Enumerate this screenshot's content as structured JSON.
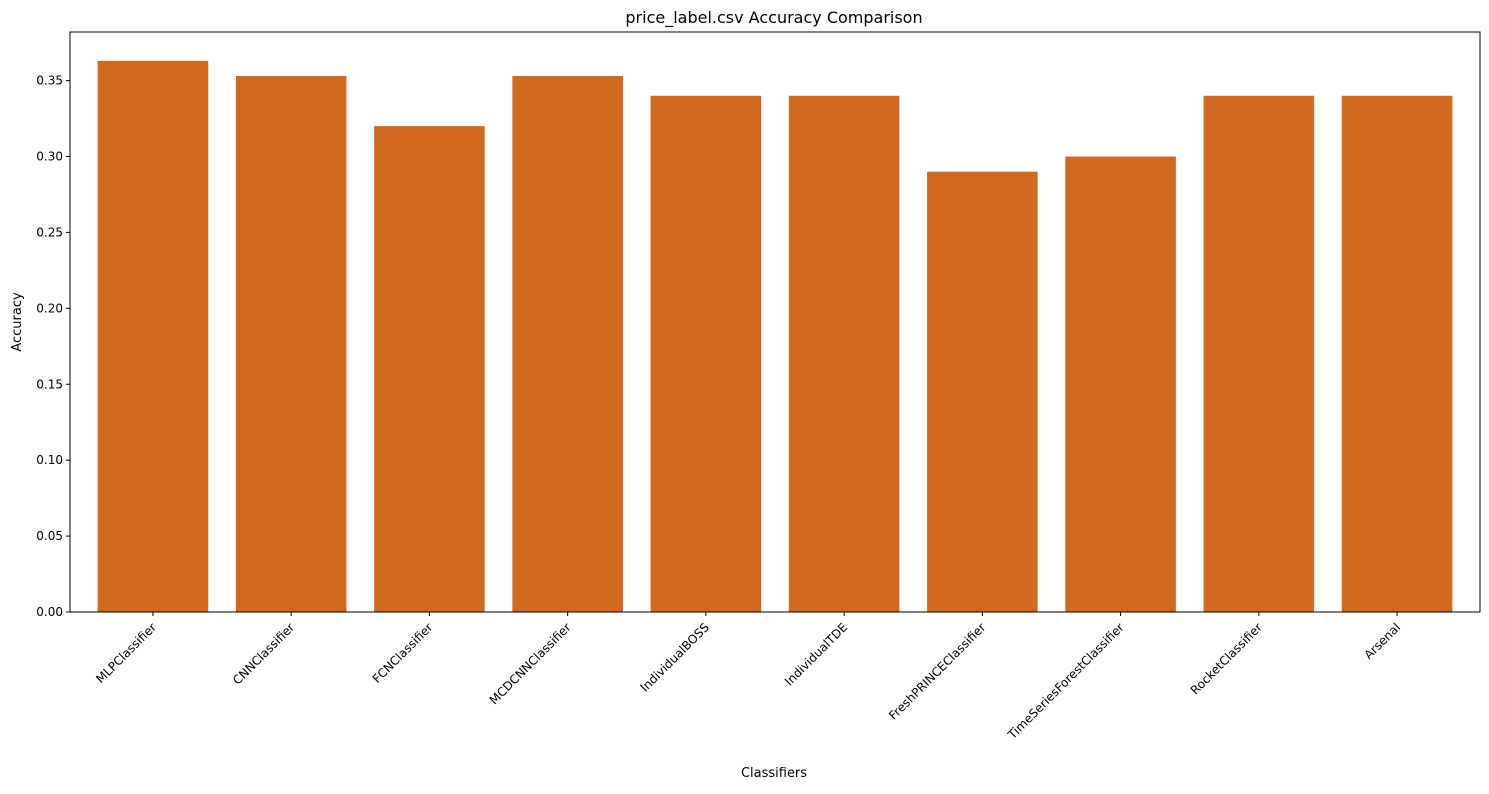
{
  "chart_data": {
    "type": "bar",
    "title": "price_label.csv Accuracy Comparison",
    "xlabel": "Classifiers",
    "ylabel": "Accuracy",
    "categories": [
      "MLPClassifier",
      "CNNClassifier",
      "FCNClassifier",
      "MCDCNNClassifier",
      "IndividualBOSS",
      "IndividualTDE",
      "FreshPRINCEClassifier",
      "TimeSeriesForestClassifier",
      "RocketClassifier",
      "Arsenal"
    ],
    "values": [
      0.363,
      0.353,
      0.32,
      0.353,
      0.34,
      0.34,
      0.29,
      0.3,
      0.34,
      0.34
    ],
    "ylim": [
      0,
      0.382
    ],
    "yticks": [
      0.0,
      0.05,
      0.1,
      0.15,
      0.2,
      0.25,
      0.3,
      0.35
    ],
    "ytick_labels": [
      "0.00",
      "0.05",
      "0.10",
      "0.15",
      "0.20",
      "0.25",
      "0.30",
      "0.35"
    ],
    "bar_color": "#d2691e",
    "grid": false,
    "legend": "none"
  }
}
